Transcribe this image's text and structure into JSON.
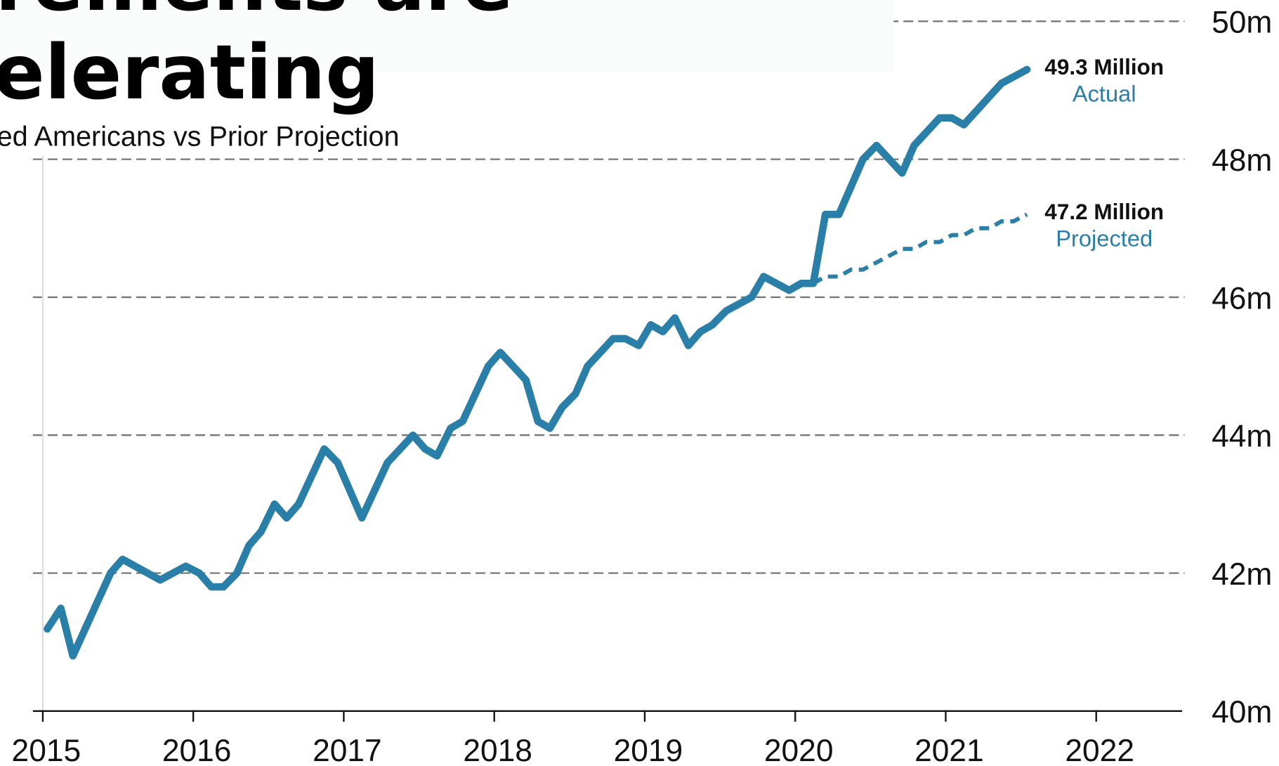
{
  "chart_data": {
    "type": "line",
    "title": [
      "rements are",
      "elerating"
    ],
    "subtitle": "ed Americans vs Prior Projection",
    "xlim": [
      2015,
      2022.56
    ],
    "xticks": [
      2015,
      2016,
      2017,
      2018,
      2019,
      2020,
      2021,
      2022
    ],
    "ylim": [
      40,
      50
    ],
    "yticks": [
      {
        "value": 40,
        "label": "40m"
      },
      {
        "value": 42,
        "label": "42m"
      },
      {
        "value": 44,
        "label": "44m"
      },
      {
        "value": 46,
        "label": "46m"
      },
      {
        "value": 48,
        "label": "48m"
      },
      {
        "value": 50,
        "label": "50m"
      }
    ],
    "grid": true,
    "series": [
      {
        "name": "Actual",
        "color": "#2a7fa8",
        "dashed": false,
        "x": [
          2015.03,
          2015.12,
          2015.2,
          2015.45,
          2015.53,
          2015.78,
          2015.95,
          2016.04,
          2016.12,
          2016.2,
          2016.29,
          2016.37,
          2016.45,
          2016.54,
          2016.62,
          2016.7,
          2016.87,
          2016.96,
          2017.12,
          2017.29,
          2017.46,
          2017.54,
          2017.62,
          2017.71,
          2017.79,
          2017.96,
          2018.04,
          2018.21,
          2018.29,
          2018.37,
          2018.45,
          2018.54,
          2018.62,
          2018.79,
          2018.87,
          2018.96,
          2019.04,
          2019.12,
          2019.2,
          2019.29,
          2019.37,
          2019.45,
          2019.54,
          2019.71,
          2019.79,
          2019.96,
          2020.04,
          2020.12,
          2020.2,
          2020.29,
          2020.45,
          2020.54,
          2020.71,
          2020.79,
          2020.96,
          2021.04,
          2021.12,
          2021.37,
          2021.54
        ],
        "values": [
          41.19,
          41.49,
          40.8,
          42.0,
          42.2,
          41.9,
          42.1,
          42.0,
          41.8,
          41.8,
          42.0,
          42.4,
          42.6,
          43.0,
          42.8,
          43.0,
          43.8,
          43.6,
          42.8,
          43.6,
          44.0,
          43.8,
          43.7,
          44.1,
          44.2,
          45.0,
          45.2,
          44.8,
          44.2,
          44.1,
          44.4,
          44.6,
          45.0,
          45.4,
          45.4,
          45.3,
          45.6,
          45.5,
          45.7,
          45.3,
          45.5,
          45.6,
          45.8,
          46.0,
          46.3,
          46.1,
          46.2,
          46.2,
          47.2,
          47.2,
          48.0,
          48.2,
          47.8,
          48.2,
          48.6,
          48.6,
          48.5,
          49.1,
          49.3
        ],
        "label_value": "49.3 Million"
      },
      {
        "name": "Projected",
        "color": "#2a7fa8",
        "dashed": true,
        "x": [
          2020.12,
          2020.2,
          2020.29,
          2020.37,
          2020.45,
          2020.71,
          2020.79,
          2020.87,
          2020.96,
          2021.04,
          2021.12,
          2021.2,
          2021.29,
          2021.37,
          2021.45,
          2021.54
        ],
        "values": [
          46.2,
          46.3,
          46.3,
          46.4,
          46.4,
          46.7,
          46.7,
          46.8,
          46.8,
          46.9,
          46.9,
          47.0,
          47.0,
          47.1,
          47.1,
          47.2
        ],
        "label_value": "47.2 Million"
      }
    ]
  }
}
